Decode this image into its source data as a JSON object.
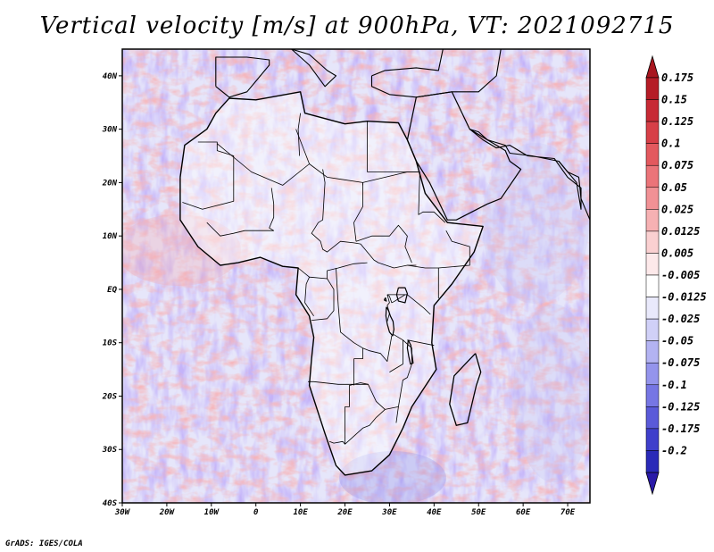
{
  "title": "Vertical velocity [m/s] at 900hPa, VT: 2021092715",
  "credit": "GrADS: IGES/COLA",
  "map": {
    "lon_range": [
      -30,
      75
    ],
    "lat_range": [
      -40,
      45
    ],
    "lon_ticks": [
      {
        "value": -30,
        "label": "30W"
      },
      {
        "value": -20,
        "label": "20W"
      },
      {
        "value": -10,
        "label": "10W"
      },
      {
        "value": 0,
        "label": "0"
      },
      {
        "value": 10,
        "label": "10E"
      },
      {
        "value": 20,
        "label": "20E"
      },
      {
        "value": 30,
        "label": "30E"
      },
      {
        "value": 40,
        "label": "40E"
      },
      {
        "value": 50,
        "label": "50E"
      },
      {
        "value": 60,
        "label": "60E"
      },
      {
        "value": 70,
        "label": "70E"
      }
    ],
    "lat_ticks": [
      {
        "value": 40,
        "label": "40N"
      },
      {
        "value": 30,
        "label": "30N"
      },
      {
        "value": 20,
        "label": "20N"
      },
      {
        "value": 10,
        "label": "10N"
      },
      {
        "value": 0,
        "label": "EQ"
      },
      {
        "value": -10,
        "label": "10S"
      },
      {
        "value": -20,
        "label": "20S"
      },
      {
        "value": -30,
        "label": "30S"
      },
      {
        "value": -40,
        "label": "40S"
      }
    ],
    "africa_outline": [
      [
        -17,
        21
      ],
      [
        -16,
        27
      ],
      [
        -11,
        30
      ],
      [
        -9,
        33
      ],
      [
        -6,
        35.8
      ],
      [
        0,
        35.5
      ],
      [
        10,
        37
      ],
      [
        11,
        33
      ],
      [
        20,
        31
      ],
      [
        25,
        31.5
      ],
      [
        32,
        31.2
      ],
      [
        34,
        28
      ],
      [
        36,
        24
      ],
      [
        38,
        18
      ],
      [
        43,
        12.5
      ],
      [
        51,
        11.8
      ],
      [
        49,
        7
      ],
      [
        44,
        1
      ],
      [
        40,
        -3
      ],
      [
        39.5,
        -10
      ],
      [
        40.5,
        -15
      ],
      [
        35,
        -22
      ],
      [
        33,
        -26
      ],
      [
        30,
        -31
      ],
      [
        26,
        -34
      ],
      [
        20,
        -34.8
      ],
      [
        18,
        -33
      ],
      [
        15.5,
        -27
      ],
      [
        12,
        -18
      ],
      [
        12.5,
        -13
      ],
      [
        13,
        -9
      ],
      [
        12,
        -5
      ],
      [
        9,
        -1
      ],
      [
        9.5,
        4
      ],
      [
        6,
        4.3
      ],
      [
        1,
        6
      ],
      [
        -4,
        5
      ],
      [
        -8,
        4.5
      ],
      [
        -13,
        8
      ],
      [
        -17,
        13
      ],
      [
        -17,
        21
      ]
    ],
    "arabia_outline": [
      [
        34,
        28
      ],
      [
        35,
        32
      ],
      [
        36,
        36
      ],
      [
        44,
        37
      ],
      [
        48,
        30
      ],
      [
        56,
        26
      ],
      [
        57,
        24
      ],
      [
        59.5,
        22.5
      ],
      [
        55,
        17
      ],
      [
        52,
        16
      ],
      [
        45,
        13
      ],
      [
        43,
        13
      ],
      [
        39,
        20
      ],
      [
        36,
        24
      ],
      [
        34,
        28
      ]
    ],
    "madagascar_outline": [
      [
        49.3,
        -12
      ],
      [
        50.5,
        -15.5
      ],
      [
        49.5,
        -18
      ],
      [
        47.5,
        -25
      ],
      [
        45,
        -25.5
      ],
      [
        43.5,
        -21.5
      ],
      [
        44.5,
        -16.2
      ],
      [
        47,
        -14
      ],
      [
        49.3,
        -12
      ]
    ],
    "europe_coast": [
      [
        -9,
        38
      ],
      [
        -9,
        43.5
      ],
      [
        -2,
        43.5
      ],
      [
        3,
        43
      ],
      [
        3,
        42
      ],
      [
        0,
        39
      ],
      [
        -2,
        37
      ],
      [
        -6,
        36
      ],
      [
        -9,
        38
      ]
    ],
    "europe_coast2": [
      [
        8,
        45
      ],
      [
        12,
        44
      ],
      [
        16,
        41
      ],
      [
        18,
        40
      ],
      [
        15.5,
        38
      ],
      [
        12,
        42
      ],
      [
        8,
        45
      ]
    ],
    "turkey_coast": [
      [
        26,
        40
      ],
      [
        29,
        41
      ],
      [
        36,
        41.5
      ],
      [
        41,
        41
      ],
      [
        42,
        45
      ],
      [
        55,
        45
      ],
      [
        54,
        40
      ],
      [
        50,
        37
      ],
      [
        44,
        37
      ],
      [
        36,
        36
      ],
      [
        30,
        36.5
      ],
      [
        26,
        38
      ],
      [
        26,
        40
      ]
    ],
    "iran_coast": [
      [
        48,
        30
      ],
      [
        51,
        28
      ],
      [
        54,
        26.5
      ],
      [
        57,
        27
      ],
      [
        61,
        25
      ],
      [
        67,
        24.5
      ],
      [
        70,
        21
      ],
      [
        73,
        19
      ],
      [
        73,
        15
      ],
      [
        72,
        20
      ],
      [
        68,
        24
      ],
      [
        62,
        25
      ],
      [
        57,
        25.5
      ],
      [
        56,
        27
      ],
      [
        52,
        28
      ],
      [
        50,
        29.5
      ],
      [
        48,
        30
      ]
    ],
    "india_coast": [
      [
        68,
        24
      ],
      [
        70,
        22
      ],
      [
        72.5,
        21
      ],
      [
        73,
        17
      ],
      [
        74,
        15
      ],
      [
        75,
        13
      ]
    ],
    "borders": [
      [
        [
          -13,
          27.6
        ],
        [
          -8.7,
          27.6
        ],
        [
          -8.7,
          26
        ],
        [
          -5,
          25
        ],
        [
          -5,
          16.5
        ],
        [
          -12,
          15
        ],
        [
          -16.5,
          16.3
        ]
      ],
      [
        [
          -8.7,
          27.3
        ],
        [
          -1,
          22
        ],
        [
          6,
          19.5
        ],
        [
          12,
          23.5
        ],
        [
          16,
          21
        ],
        [
          24,
          20
        ],
        [
          24,
          19.5
        ]
      ],
      [
        [
          9,
          30
        ],
        [
          12,
          23.5
        ]
      ],
      [
        [
          10,
          33
        ],
        [
          9.5,
          30
        ],
        [
          9.8,
          25
        ]
      ],
      [
        [
          25,
          31.5
        ],
        [
          25,
          22
        ]
      ],
      [
        [
          25,
          22
        ],
        [
          36.8,
          22
        ]
      ],
      [
        [
          24,
          20
        ],
        [
          24,
          15.5
        ],
        [
          22,
          12.5
        ],
        [
          22.5,
          9
        ]
      ],
      [
        [
          3.5,
          19
        ],
        [
          4,
          16
        ],
        [
          4,
          13.5
        ],
        [
          3,
          11.5
        ],
        [
          4,
          11
        ],
        [
          1,
          11
        ],
        [
          -2.5,
          11
        ],
        [
          -5,
          10.5
        ],
        [
          -8,
          10
        ],
        [
          -11,
          12.5
        ]
      ],
      [
        [
          15,
          22.5
        ],
        [
          15.5,
          20
        ],
        [
          15,
          13
        ],
        [
          14,
          12.5
        ],
        [
          12.5,
          10.5
        ],
        [
          14.5,
          9
        ],
        [
          15,
          7.5
        ],
        [
          16,
          7
        ],
        [
          19,
          9
        ],
        [
          22,
          8.7
        ],
        [
          23.5,
          8.5
        ],
        [
          26.5,
          5.5
        ],
        [
          27.5,
          5
        ],
        [
          31,
          4
        ],
        [
          34,
          4.5
        ],
        [
          36,
          4.5
        ]
      ],
      [
        [
          24,
          20
        ],
        [
          34,
          22
        ],
        [
          36.5,
          22
        ]
      ],
      [
        [
          22.5,
          9
        ],
        [
          26,
          10
        ],
        [
          30,
          10
        ],
        [
          32,
          12
        ],
        [
          34,
          10
        ],
        [
          33.5,
          8
        ],
        [
          35,
          5
        ]
      ],
      [
        [
          36.8,
          22
        ],
        [
          36.5,
          14
        ],
        [
          37.5,
          14.5
        ],
        [
          40,
          14.5
        ],
        [
          42.5,
          12.5
        ]
      ],
      [
        [
          34,
          4.5
        ],
        [
          38,
          4
        ],
        [
          41,
          4
        ],
        [
          41,
          -1.7
        ]
      ],
      [
        [
          42.7,
          11
        ],
        [
          44,
          9
        ],
        [
          48,
          8
        ],
        [
          48,
          4.5
        ],
        [
          41,
          4
        ]
      ],
      [
        [
          9.5,
          4
        ],
        [
          12,
          2.3
        ],
        [
          16,
          2
        ],
        [
          16,
          3.5
        ],
        [
          18.5,
          4
        ],
        [
          22,
          4.8
        ],
        [
          25,
          5
        ]
      ],
      [
        [
          12,
          2.3
        ],
        [
          11.3,
          1
        ],
        [
          11,
          -2.5
        ],
        [
          13,
          -5
        ]
      ],
      [
        [
          16,
          2
        ],
        [
          17.5,
          0
        ],
        [
          17.5,
          -4
        ],
        [
          16,
          -5.5
        ],
        [
          12.5,
          -5.8
        ]
      ],
      [
        [
          18,
          4
        ],
        [
          18.5,
          -3
        ],
        [
          19,
          -8
        ],
        [
          22,
          -10
        ],
        [
          24,
          -11
        ],
        [
          25.5,
          -11.5
        ],
        [
          28,
          -12
        ],
        [
          29.5,
          -13.5
        ],
        [
          30.5,
          -8.7
        ]
      ],
      [
        [
          29.5,
          -1
        ],
        [
          30,
          -2.5
        ],
        [
          29.5,
          -3
        ],
        [
          30,
          -4.5
        ],
        [
          29.5,
          -6
        ]
      ],
      [
        [
          11.7,
          -17.3
        ],
        [
          13,
          -17.3
        ],
        [
          18.5,
          -17.8
        ],
        [
          24,
          -17.8
        ],
        [
          25.2,
          -17.8
        ]
      ],
      [
        [
          20,
          -22
        ],
        [
          20,
          -24.5
        ],
        [
          20,
          -29
        ],
        [
          19.5,
          -28.5
        ],
        [
          17.5,
          -28.8
        ],
        [
          16.5,
          -28.5
        ]
      ],
      [
        [
          20,
          -22
        ],
        [
          21,
          -22
        ],
        [
          21,
          -18
        ],
        [
          23.5,
          -17.5
        ],
        [
          25.2,
          -17.8
        ],
        [
          27,
          -21
        ],
        [
          29,
          -22.5
        ],
        [
          32,
          -22
        ],
        [
          31.5,
          -25
        ]
      ],
      [
        [
          20,
          -29
        ],
        [
          24,
          -26
        ],
        [
          25.5,
          -25.5
        ],
        [
          27,
          -24
        ],
        [
          29,
          -22.5
        ]
      ],
      [
        [
          22,
          -13
        ],
        [
          24,
          -13
        ],
        [
          24,
          -11
        ]
      ],
      [
        [
          22,
          -13
        ],
        [
          22,
          -18
        ]
      ],
      [
        [
          30,
          -15.5
        ],
        [
          33,
          -14
        ],
        [
          33,
          -9.5
        ],
        [
          35,
          -11
        ],
        [
          35,
          -14
        ],
        [
          34,
          -16.5
        ],
        [
          33,
          -17
        ],
        [
          32,
          -22
        ]
      ],
      [
        [
          30.5,
          -8.7
        ],
        [
          31,
          -8.5
        ],
        [
          33,
          -9.5
        ]
      ],
      [
        [
          34,
          -9.5
        ],
        [
          40,
          -10.5
        ]
      ],
      [
        [
          29.5,
          -1
        ],
        [
          30.5,
          -1
        ],
        [
          34,
          -1
        ],
        [
          37.7,
          -3.5
        ],
        [
          39.2,
          -4.7
        ]
      ],
      [
        [
          29.5,
          -1
        ],
        [
          30,
          -1.3
        ],
        [
          30.5,
          -2.5
        ],
        [
          31,
          -2.3
        ],
        [
          33.5,
          -1
        ]
      ]
    ],
    "lakes": [
      [
        [
          32,
          0.3
        ],
        [
          33.5,
          0.3
        ],
        [
          34,
          -0.8
        ],
        [
          33.5,
          -2.5
        ],
        [
          32,
          -2.2
        ],
        [
          31.6,
          -1
        ],
        [
          32,
          0.3
        ]
      ],
      [
        [
          29.3,
          -3.3
        ],
        [
          29.8,
          -4
        ],
        [
          30.2,
          -5
        ],
        [
          30.8,
          -6
        ],
        [
          31,
          -7.5
        ],
        [
          30.7,
          -8.7
        ],
        [
          30,
          -8
        ],
        [
          29.5,
          -6.5
        ],
        [
          29.2,
          -5
        ],
        [
          29.3,
          -3.3
        ]
      ],
      [
        [
          34.2,
          -9.5
        ],
        [
          34.8,
          -10.5
        ],
        [
          35,
          -12
        ],
        [
          35.3,
          -13.8
        ],
        [
          34.7,
          -14
        ],
        [
          34.3,
          -12.5
        ],
        [
          34.0,
          -11
        ],
        [
          34.2,
          -9.5
        ]
      ],
      [
        [
          28.8,
          -2
        ],
        [
          29.3,
          -2.2
        ],
        [
          29.1,
          -1.6
        ],
        [
          28.8,
          -2
        ]
      ]
    ]
  },
  "colorbar": {
    "entries": [
      {
        "color": "#b51c26",
        "label": "0.175"
      },
      {
        "color": "#c72a35",
        "label": "0.15"
      },
      {
        "color": "#d73f47",
        "label": "0.125"
      },
      {
        "color": "#e3595e",
        "label": "0.1"
      },
      {
        "color": "#eb7479",
        "label": "0.075"
      },
      {
        "color": "#f19195",
        "label": "0.05"
      },
      {
        "color": "#f6b1b3",
        "label": "0.025"
      },
      {
        "color": "#fad0d1",
        "label": "0.0125"
      },
      {
        "color": "#fde9ea",
        "label": "0.005"
      },
      {
        "color": "#ffffff",
        "label": "-0.005"
      },
      {
        "color": "#e9e9fb",
        "label": "-0.0125"
      },
      {
        "color": "#d0d0f7",
        "label": "-0.025"
      },
      {
        "color": "#b3b3f2",
        "label": "-0.05"
      },
      {
        "color": "#9494ec",
        "label": "-0.075"
      },
      {
        "color": "#7676e4",
        "label": "-0.1"
      },
      {
        "color": "#5a5ad9",
        "label": "-0.125"
      },
      {
        "color": "#3f3fcb",
        "label": "-0.175"
      },
      {
        "color": "#2a2ab8",
        "label": "-0.2"
      }
    ],
    "top_cap_color": "#a8161f",
    "bottom_cap_color": "#2a1aa8"
  }
}
